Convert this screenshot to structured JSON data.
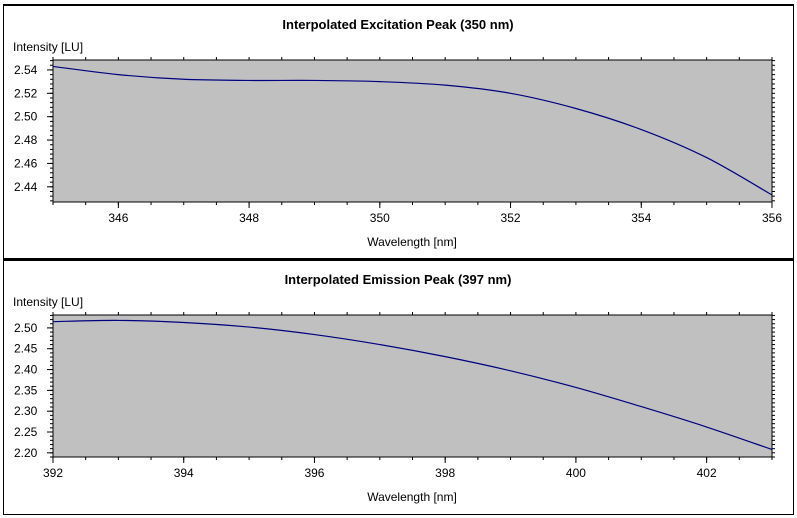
{
  "chart_data": [
    {
      "type": "line",
      "title": "Interpolated Excitation Peak (350 nm)",
      "xlabel": "Wavelength [nm]",
      "ylabel": "Intensity [LU]",
      "xlim": [
        345,
        356
      ],
      "ylim": [
        2.427,
        2.5485
      ],
      "xticks": [
        346,
        348,
        350,
        352,
        354,
        356
      ],
      "xtick_labels": [
        "346",
        "348",
        "350",
        "352",
        "354",
        "356"
      ],
      "yticks": [
        2.44,
        2.46,
        2.48,
        2.5,
        2.52,
        2.54
      ],
      "ytick_labels": [
        "2.44",
        "2.46",
        "2.48",
        "2.50",
        "2.52",
        "2.54"
      ],
      "x_minor_step": 0.5,
      "y_minor_step": 0.004,
      "grid": false,
      "background": "#c0c0c0",
      "line_color": "#000080",
      "x": [
        345,
        346,
        347,
        348,
        349,
        350,
        351,
        352,
        353,
        354,
        355,
        356
      ],
      "y": [
        2.543,
        2.536,
        2.532,
        2.531,
        2.531,
        2.53,
        2.527,
        2.52,
        2.507,
        2.489,
        2.465,
        2.433
      ]
    },
    {
      "type": "line",
      "title": "Interpolated Emission Peak (397 nm)",
      "xlabel": "Wavelength [nm]",
      "ylabel": "Intensity [LU]",
      "xlim": [
        392,
        403
      ],
      "ylim": [
        2.19,
        2.531
      ],
      "xticks": [
        392,
        394,
        396,
        398,
        400,
        402
      ],
      "xtick_labels": [
        "392",
        "394",
        "396",
        "398",
        "400",
        "402"
      ],
      "yticks": [
        2.2,
        2.25,
        2.3,
        2.35,
        2.4,
        2.45,
        2.5
      ],
      "ytick_labels": [
        "2.20",
        "2.25",
        "2.30",
        "2.35",
        "2.40",
        "2.45",
        "2.50"
      ],
      "x_minor_step": 0.5,
      "y_minor_step": 0.01,
      "grid": false,
      "background": "#c0c0c0",
      "line_color": "#000080",
      "x": [
        392,
        393,
        394,
        395,
        396,
        397,
        398,
        399,
        400,
        401,
        402,
        403
      ],
      "y": [
        2.515,
        2.518,
        2.513,
        2.502,
        2.484,
        2.46,
        2.431,
        2.397,
        2.357,
        2.311,
        2.262,
        2.208
      ]
    }
  ]
}
